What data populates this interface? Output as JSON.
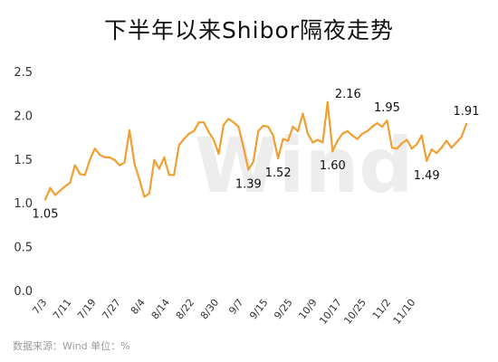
{
  "chart_data": {
    "type": "line",
    "title": "下半年以来Shibor隔夜走势",
    "source": "数据来源：Wind 单位：%",
    "watermark": "Wind",
    "ylim": [
      0.0,
      2.5
    ],
    "yticks": [
      "0.0",
      "0.5",
      "1.0",
      "1.5",
      "2.0",
      "2.5"
    ],
    "xticks": [
      "7/3",
      "7/11",
      "7/19",
      "7/27",
      "8/4",
      "8/14",
      "8/22",
      "8/30",
      "9/7",
      "9/15",
      "9/25",
      "10/9",
      "10/17",
      "10/25",
      "11/2",
      "11/10"
    ],
    "color": "#f0a032",
    "values": [
      1.05,
      1.18,
      1.1,
      1.15,
      1.2,
      1.24,
      1.44,
      1.34,
      1.33,
      1.5,
      1.63,
      1.56,
      1.53,
      1.53,
      1.5,
      1.44,
      1.47,
      1.84,
      1.46,
      1.28,
      1.08,
      1.12,
      1.5,
      1.4,
      1.53,
      1.33,
      1.33,
      1.67,
      1.74,
      1.8,
      1.83,
      1.93,
      1.93,
      1.82,
      1.73,
      1.57,
      1.9,
      1.97,
      1.93,
      1.88,
      1.65,
      1.39,
      1.48,
      1.83,
      1.89,
      1.88,
      1.78,
      1.52,
      1.74,
      1.72,
      1.88,
      1.83,
      2.03,
      1.8,
      1.7,
      1.73,
      1.7,
      2.16,
      1.6,
      1.72,
      1.8,
      1.83,
      1.78,
      1.74,
      1.8,
      1.83,
      1.88,
      1.92,
      1.88,
      1.95,
      1.64,
      1.63,
      1.69,
      1.73,
      1.63,
      1.68,
      1.78,
      1.49,
      1.62,
      1.58,
      1.64,
      1.72,
      1.64,
      1.7,
      1.76,
      1.91
    ],
    "annotations": [
      {
        "index": 0,
        "label": "1.05",
        "pos": "below"
      },
      {
        "index": 41,
        "label": "1.39",
        "pos": "below"
      },
      {
        "index": 47,
        "label": "1.52",
        "pos": "below"
      },
      {
        "index": 57,
        "label": "2.16",
        "pos": "right"
      },
      {
        "index": 58,
        "label": "1.60",
        "pos": "below"
      },
      {
        "index": 69,
        "label": "1.95",
        "pos": "above"
      },
      {
        "index": 77,
        "label": "1.49",
        "pos": "below"
      },
      {
        "index": 85,
        "label": "1.91",
        "pos": "above"
      }
    ]
  }
}
